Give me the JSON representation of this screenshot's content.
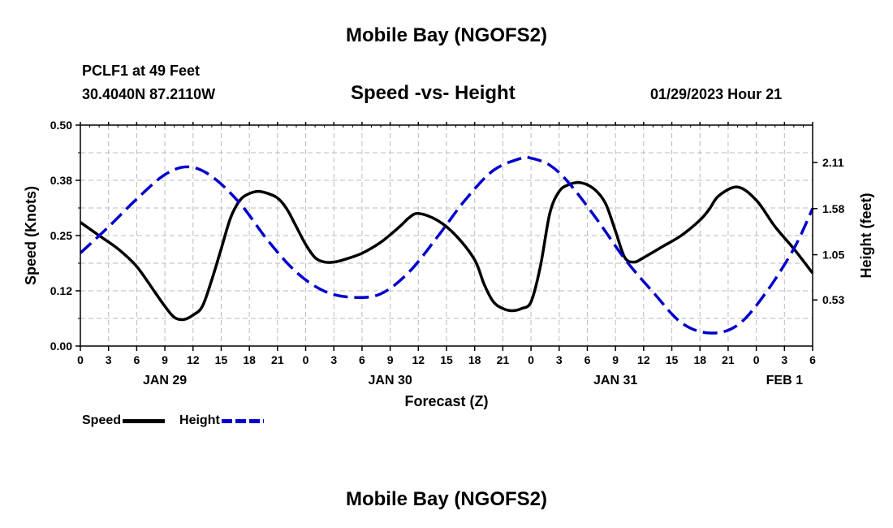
{
  "page": {
    "title_top": "Mobile Bay (NGOFS2)",
    "title_bottom": "Mobile Bay (NGOFS2)",
    "station_line": "PCLF1 at 49 Feet",
    "coords_line": "30.4040N  87.2110W",
    "subtitle": "Speed -vs- Height",
    "datetime": "01/29/2023 Hour 21"
  },
  "legend": {
    "speed_label": "Speed",
    "height_label": "Height"
  },
  "colors": {
    "speed": "#000000",
    "height": "#0000cc",
    "grid": "#bbbbbb"
  },
  "chart_data": {
    "type": "line",
    "title": "Speed -vs- Height",
    "xlabel": "Forecast (Z)",
    "ylabel": "Speed (Knots)",
    "ylabel_right": "Height (feet)",
    "x_unit": "hours from JAN 29 00Z",
    "xlim": [
      0,
      78
    ],
    "ylim": [
      0,
      0.5
    ],
    "ylim_right": [
      0.0,
      2.54
    ],
    "grid": true,
    "x_ticks": [
      0,
      3,
      6,
      9,
      12,
      15,
      18,
      21,
      24,
      27,
      30,
      33,
      36,
      39,
      42,
      45,
      48,
      51,
      54,
      57,
      60,
      63,
      66,
      69,
      72,
      75,
      78
    ],
    "x_tick_labels": [
      "0",
      "3",
      "6",
      "9",
      "12",
      "15",
      "18",
      "21",
      "0",
      "3",
      "6",
      "9",
      "12",
      "15",
      "18",
      "21",
      "0",
      "3",
      "6",
      "9",
      "12",
      "15",
      "18",
      "21",
      "0",
      "3",
      "6"
    ],
    "y_ticks": [
      0.0,
      0.125,
      0.25,
      0.375,
      0.5
    ],
    "y_tick_labels": [
      "0.00",
      "0.12",
      "0.25",
      "0.38",
      "0.50"
    ],
    "y_ticks_right": [
      0.53,
      1.05,
      1.58,
      2.11
    ],
    "y_tick_labels_right": [
      "0.53",
      "1.05",
      "1.58",
      "2.11"
    ],
    "date_labels": [
      {
        "x": 9,
        "label": "JAN 29"
      },
      {
        "x": 33,
        "label": "JAN 30"
      },
      {
        "x": 57,
        "label": "JAN 31"
      },
      {
        "x": 75,
        "label": "FEB 1"
      }
    ],
    "series": [
      {
        "name": "Speed",
        "axis": "left",
        "style": "solid",
        "x": [
          0,
          2,
          4,
          6,
          8,
          9,
          10,
          11,
          12,
          13,
          14,
          15,
          16,
          17,
          18,
          19,
          20,
          21,
          22,
          23,
          24,
          25,
          26,
          27,
          28,
          30,
          32,
          34,
          35,
          36,
          38,
          40,
          42,
          43,
          44,
          45,
          46,
          47,
          48,
          49,
          50,
          51,
          52,
          53,
          54,
          55,
          56,
          57,
          58,
          59,
          60,
          62,
          64,
          66,
          67,
          68,
          70,
          72,
          74,
          76,
          78
        ],
        "values": [
          0.28,
          0.25,
          0.22,
          0.18,
          0.12,
          0.09,
          0.065,
          0.06,
          0.07,
          0.09,
          0.15,
          0.22,
          0.29,
          0.33,
          0.345,
          0.35,
          0.345,
          0.335,
          0.31,
          0.27,
          0.23,
          0.2,
          0.19,
          0.19,
          0.195,
          0.21,
          0.235,
          0.27,
          0.29,
          0.3,
          0.285,
          0.25,
          0.195,
          0.14,
          0.1,
          0.085,
          0.08,
          0.085,
          0.1,
          0.18,
          0.3,
          0.35,
          0.365,
          0.37,
          0.365,
          0.35,
          0.32,
          0.26,
          0.2,
          0.19,
          0.2,
          0.225,
          0.25,
          0.285,
          0.31,
          0.34,
          0.36,
          0.33,
          0.27,
          0.22,
          0.165
        ]
      },
      {
        "name": "Height",
        "axis": "right",
        "style": "dashed",
        "x": [
          0,
          3,
          6,
          9,
          11.5,
          14,
          17,
          20,
          23,
          26,
          29,
          32,
          35,
          38,
          41,
          44,
          47,
          48,
          50,
          52,
          55,
          58,
          61,
          64,
          67,
          70,
          73,
          76,
          78
        ],
        "values": [
          1.07,
          1.37,
          1.69,
          1.97,
          2.06,
          1.95,
          1.64,
          1.21,
          0.85,
          0.63,
          0.56,
          0.6,
          0.85,
          1.25,
          1.68,
          2.02,
          2.16,
          2.16,
          2.08,
          1.88,
          1.46,
          1.0,
          0.62,
          0.27,
          0.15,
          0.24,
          0.61,
          1.12,
          1.58
        ]
      }
    ]
  }
}
